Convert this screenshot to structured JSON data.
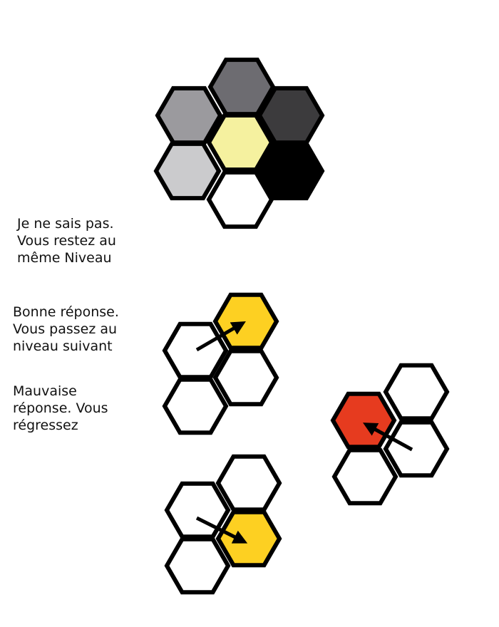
{
  "captions": {
    "unknown": "Je ne sais pas.\nVous restez au\nmême Niveau",
    "correct": "Bonne réponse.\nVous passez au\nniveau suivant",
    "wrong": "Mauvaise\nréponse. Vous\nrégressez"
  },
  "colors": {
    "outline": "#000000",
    "level_colors": [
      "#9b9a9e",
      "#6d6c71",
      "#3c3b3d",
      "#f5f19f",
      "#cbcbcd",
      "#000000",
      "#ffffff"
    ],
    "advance": "#fdd022",
    "regress": "#e63b1f",
    "empty": "#ffffff",
    "arrow": "#000000"
  },
  "icons": [
    "hexagon-icon",
    "arrow-icon"
  ]
}
